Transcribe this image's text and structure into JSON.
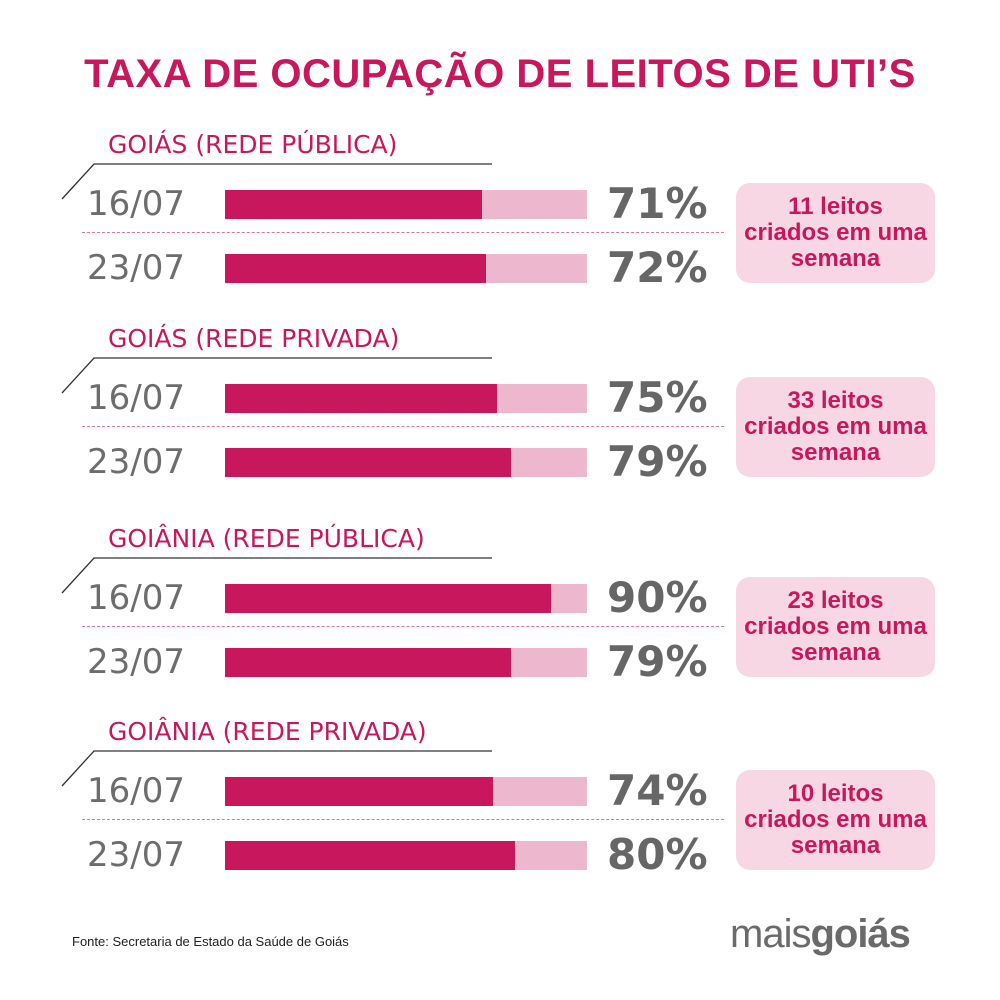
{
  "title": "TAXA DE OCUPAÇÃO DE LEITOS DE UTI’S",
  "chart_data": {
    "type": "bar",
    "title": "TAXA DE OCUPAÇÃO DE LEITOS DE UTI’S",
    "unit": "%",
    "xlim": [
      0,
      100
    ],
    "groups": [
      {
        "name": "GOIÁS (REDE PÚBLICA)",
        "rows": [
          {
            "date": "16/07",
            "value": 71,
            "label": "71%"
          },
          {
            "date": "23/07",
            "value": 72,
            "label": "72%"
          }
        ],
        "note": "11 leitos criados em uma semana"
      },
      {
        "name": "GOIÁS (REDE PRIVADA)",
        "rows": [
          {
            "date": "16/07",
            "value": 75,
            "label": "75%"
          },
          {
            "date": "23/07",
            "value": 79,
            "label": "79%"
          }
        ],
        "note": "33 leitos criados em uma semana"
      },
      {
        "name": "GOIÂNIA (REDE PÚBLICA)",
        "rows": [
          {
            "date": "16/07",
            "value": 90,
            "label": "90%"
          },
          {
            "date": "23/07",
            "value": 79,
            "label": "79%"
          }
        ],
        "note": "23 leitos criados em uma semana"
      },
      {
        "name": "GOIÂNIA (REDE PRIVADA)",
        "rows": [
          {
            "date": "16/07",
            "value": 74,
            "label": "74%"
          },
          {
            "date": "23/07",
            "value": 80,
            "label": "80%"
          }
        ],
        "note": "10 leitos criados em uma semana"
      }
    ]
  },
  "colors": {
    "accent": "#c8175c",
    "bar_background": "#edb8cd",
    "note_background": "#f8d7e4",
    "text_gray": "#6d6d6d"
  },
  "source": "Fonte: Secretaria de Estado da Saúde de Goiás",
  "logo": {
    "part1": "mais",
    "part2": "goiás"
  }
}
